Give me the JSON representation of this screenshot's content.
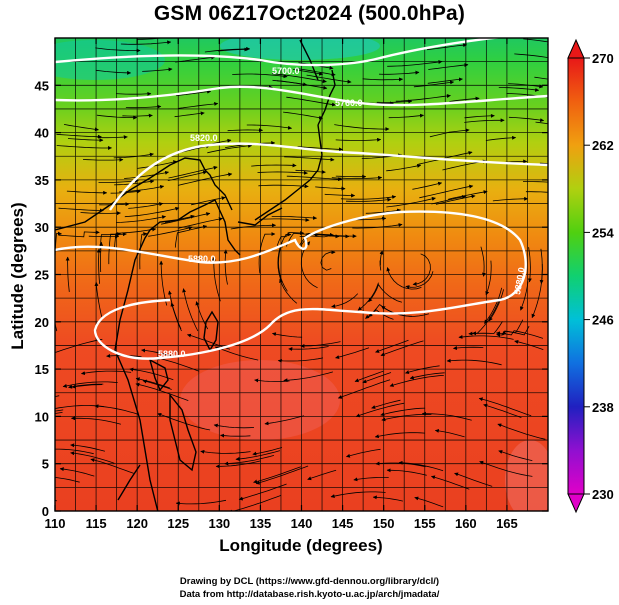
{
  "title": "GSM 06Z17Oct2024 (500.0hPa)",
  "axes": {
    "xlabel": "Longitude (degrees)",
    "ylabel": "Latitude  (degrees)",
    "x_ticks": [
      "110",
      "115",
      "120",
      "125",
      "130",
      "135",
      "140",
      "145",
      "150",
      "155",
      "160",
      "165"
    ],
    "y_ticks": [
      "0",
      "5",
      "10",
      "15",
      "20",
      "25",
      "30",
      "35",
      "40",
      "45"
    ]
  },
  "colorbar": {
    "labels": [
      "230",
      "238",
      "246",
      "254",
      "262",
      "270"
    ],
    "colors": {
      "low": "#e000c0",
      "mid_low": "#2030d0",
      "mid": "#00c8c8",
      "mid_high": "#40d020",
      "high": "#f08000",
      "top": "#e81818"
    }
  },
  "contours": {
    "labels": [
      "5700.0",
      "5760.0",
      "5820.0",
      "5880.0",
      "5880.0",
      "5880.0"
    ]
  },
  "credits": {
    "line1": "Drawing by DCL (https://www.gfd-dennou.org/library/dcl/)",
    "line2": "Data from http://database.rish.kyoto-u.ac.jp/arch/jmadata/"
  },
  "chart_data": {
    "type": "heatmap",
    "title": "GSM 06Z17Oct2024 (500.0hPa)",
    "xlabel": "Longitude (degrees)",
    "ylabel": "Latitude  (degrees)",
    "xlim": [
      110,
      170
    ],
    "ylim": [
      0,
      50
    ],
    "x_ticks": [
      110,
      115,
      120,
      125,
      130,
      135,
      140,
      145,
      150,
      155,
      160,
      165
    ],
    "y_ticks": [
      0,
      5,
      10,
      15,
      20,
      25,
      30,
      35,
      40,
      45
    ],
    "colorbar_range": [
      230,
      270
    ],
    "colorbar_ticks": [
      230,
      238,
      246,
      254,
      262,
      270
    ],
    "contour_levels": [
      5700,
      5760,
      5820,
      5880
    ],
    "temperature_by_latitude": [
      {
        "lat": 0,
        "value": 268
      },
      {
        "lat": 10,
        "value": 268
      },
      {
        "lat": 20,
        "value": 267
      },
      {
        "lat": 25,
        "value": 266
      },
      {
        "lat": 30,
        "value": 263
      },
      {
        "lat": 35,
        "value": 260
      },
      {
        "lat": 40,
        "value": 257
      },
      {
        "lat": 45,
        "value": 254
      },
      {
        "lat": 50,
        "value": 250
      }
    ],
    "grid": true,
    "legend": "right colorbar"
  }
}
